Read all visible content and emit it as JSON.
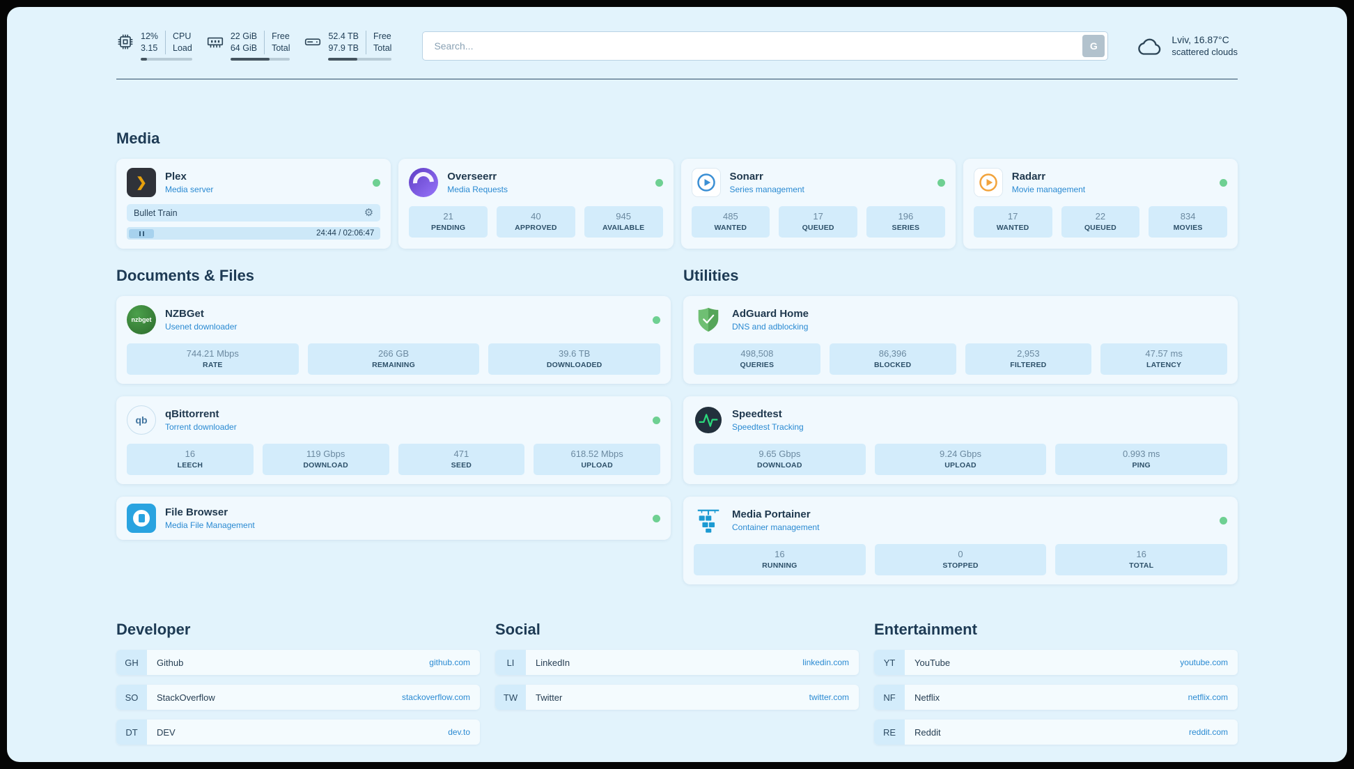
{
  "icons": {
    "plex_chevron": "❯",
    "gear": "⚙",
    "nzbget_text": "nzbget",
    "qbit_text": "qb"
  },
  "topbar": {
    "cpu": {
      "value1": "12%",
      "value2": "3.15",
      "label1": "CPU",
      "label2": "Load",
      "usage_percent": 12
    },
    "ram": {
      "value1": "22 GiB",
      "value2": "64 GiB",
      "label1": "Free",
      "label2": "Total",
      "usage_percent": 66
    },
    "disk": {
      "value1": "52.4 TB",
      "value2": "97.9 TB",
      "label1": "Free",
      "label2": "Total",
      "usage_percent": 46
    },
    "search": {
      "placeholder": "Search...",
      "engine_button": "G"
    },
    "weather": {
      "location": "Lviv, 16.87°C",
      "condition": "scattered clouds"
    }
  },
  "sections": {
    "media": {
      "title": "Media",
      "plex": {
        "title": "Plex",
        "subtitle": "Media server",
        "now_playing": "Bullet Train",
        "time": "24:44 / 02:06:47"
      },
      "overseerr": {
        "title": "Overseerr",
        "subtitle": "Media Requests",
        "stats": [
          {
            "value": "21",
            "label": "PENDING"
          },
          {
            "value": "40",
            "label": "APPROVED"
          },
          {
            "value": "945",
            "label": "AVAILABLE"
          }
        ]
      },
      "sonarr": {
        "title": "Sonarr",
        "subtitle": "Series management",
        "stats": [
          {
            "value": "485",
            "label": "WANTED"
          },
          {
            "value": "17",
            "label": "QUEUED"
          },
          {
            "value": "196",
            "label": "SERIES"
          }
        ]
      },
      "radarr": {
        "title": "Radarr",
        "subtitle": "Movie management",
        "stats": [
          {
            "value": "17",
            "label": "WANTED"
          },
          {
            "value": "22",
            "label": "QUEUED"
          },
          {
            "value": "834",
            "label": "MOVIES"
          }
        ]
      }
    },
    "documents": {
      "title": "Documents & Files",
      "nzbget": {
        "title": "NZBGet",
        "subtitle": "Usenet downloader",
        "stats": [
          {
            "value": "744.21 Mbps",
            "label": "RATE"
          },
          {
            "value": "266 GB",
            "label": "REMAINING"
          },
          {
            "value": "39.6 TB",
            "label": "DOWNLOADED"
          }
        ]
      },
      "qbittorrent": {
        "title": "qBittorrent",
        "subtitle": "Torrent downloader",
        "stats": [
          {
            "value": "16",
            "label": "LEECH"
          },
          {
            "value": "119 Gbps",
            "label": "DOWNLOAD"
          },
          {
            "value": "471",
            "label": "SEED"
          },
          {
            "value": "618.52 Mbps",
            "label": "UPLOAD"
          }
        ]
      },
      "filebrowser": {
        "title": "File Browser",
        "subtitle": "Media File Management"
      }
    },
    "utilities": {
      "title": "Utilities",
      "adguard": {
        "title": "AdGuard Home",
        "subtitle": "DNS and adblocking",
        "stats": [
          {
            "value": "498,508",
            "label": "QUERIES"
          },
          {
            "value": "86,396",
            "label": "BLOCKED"
          },
          {
            "value": "2,953",
            "label": "FILTERED"
          },
          {
            "value": "47.57 ms",
            "label": "LATENCY"
          }
        ]
      },
      "speedtest": {
        "title": "Speedtest",
        "subtitle": "Speedtest Tracking",
        "stats": [
          {
            "value": "9.65 Gbps",
            "label": "DOWNLOAD"
          },
          {
            "value": "9.24 Gbps",
            "label": "UPLOAD"
          },
          {
            "value": "0.993 ms",
            "label": "PING"
          }
        ]
      },
      "portainer": {
        "title": "Media Portainer",
        "subtitle": "Container management",
        "stats": [
          {
            "value": "16",
            "label": "RUNNING"
          },
          {
            "value": "0",
            "label": "STOPPED"
          },
          {
            "value": "16",
            "label": "TOTAL"
          }
        ]
      }
    },
    "developer": {
      "title": "Developer",
      "links": [
        {
          "abbr": "GH",
          "name": "Github",
          "url": "github.com"
        },
        {
          "abbr": "SO",
          "name": "StackOverflow",
          "url": "stackoverflow.com"
        },
        {
          "abbr": "DT",
          "name": "DEV",
          "url": "dev.to"
        }
      ]
    },
    "social": {
      "title": "Social",
      "links": [
        {
          "abbr": "LI",
          "name": "LinkedIn",
          "url": "linkedin.com"
        },
        {
          "abbr": "TW",
          "name": "Twitter",
          "url": "twitter.com"
        }
      ]
    },
    "entertainment": {
      "title": "Entertainment",
      "links": [
        {
          "abbr": "YT",
          "name": "YouTube",
          "url": "youtube.com"
        },
        {
          "abbr": "NF",
          "name": "Netflix",
          "url": "netflix.com"
        },
        {
          "abbr": "RE",
          "name": "Reddit",
          "url": "reddit.com"
        }
      ]
    }
  }
}
